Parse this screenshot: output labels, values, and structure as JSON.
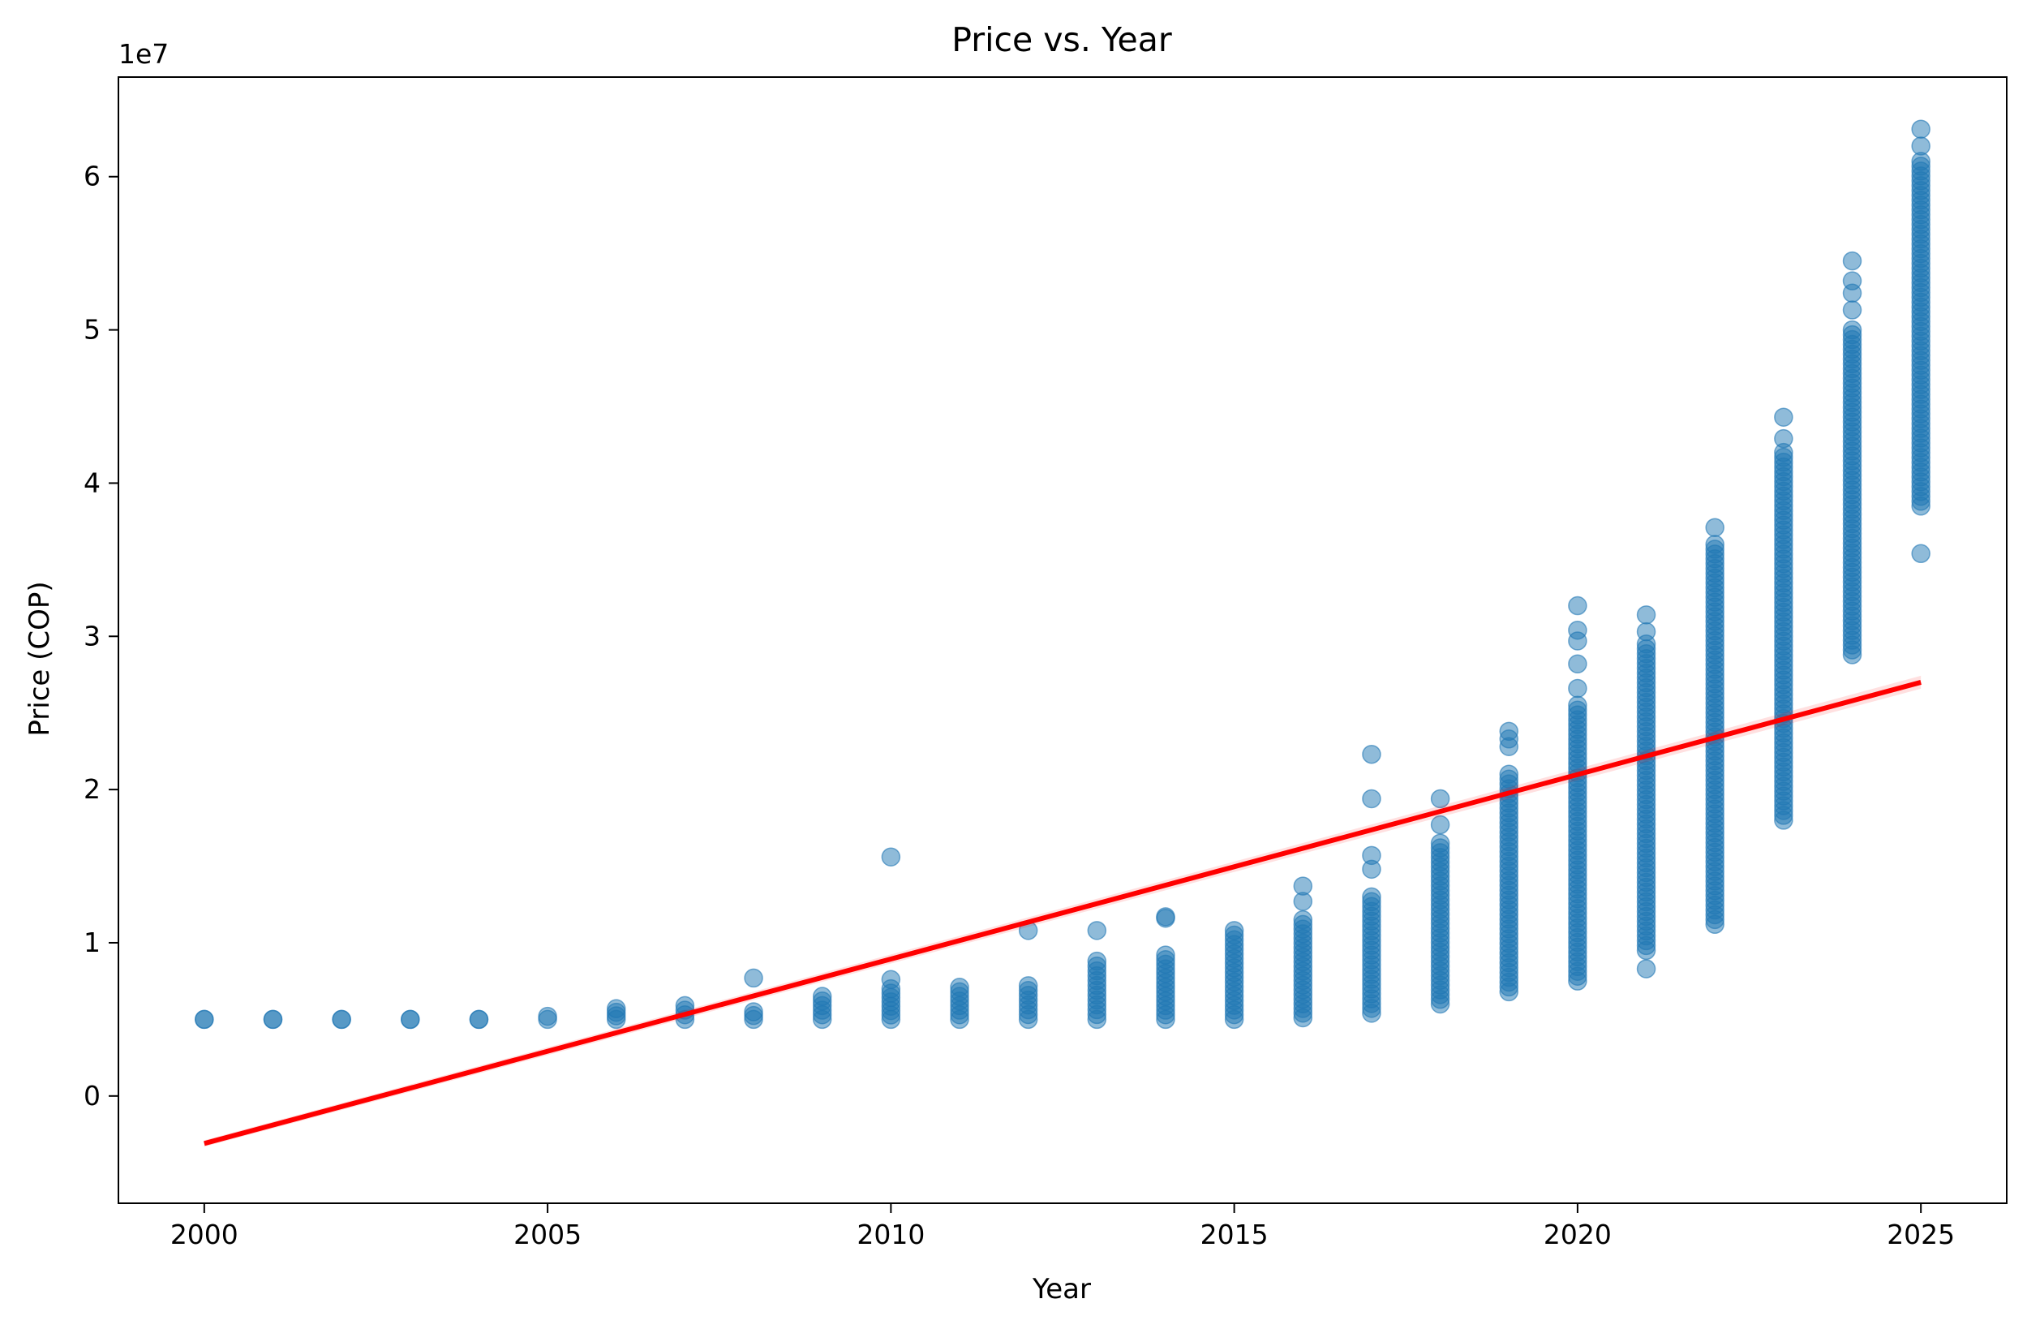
{
  "chart_data": {
    "type": "scatter",
    "title": "Price vs. Year",
    "xlabel": "Year",
    "ylabel": "Price (COP)",
    "y_offset_text": "1e7",
    "xlim": [
      1998.75,
      2026.25
    ],
    "ylim": [
      -7000000,
      66500000
    ],
    "x_ticks": [
      2000,
      2005,
      2010,
      2015,
      2020,
      2025
    ],
    "x_tick_labels": [
      "2000",
      "2005",
      "2010",
      "2015",
      "2020",
      "2025"
    ],
    "y_ticks": [
      0,
      10000000,
      20000000,
      30000000,
      40000000,
      50000000,
      60000000
    ],
    "y_tick_labels": [
      "0",
      "1",
      "2",
      "3",
      "4",
      "5",
      "6"
    ],
    "grid": false,
    "colors": {
      "points": "#1f77b4",
      "regression": "#ff0000"
    },
    "series": [
      {
        "kind": "scatter",
        "columns": [
          {
            "x": 2000,
            "min": 5000000,
            "max": 5000000,
            "outliers": []
          },
          {
            "x": 2001,
            "min": 5000000,
            "max": 5000000,
            "outliers": []
          },
          {
            "x": 2002,
            "min": 5000000,
            "max": 5000000,
            "outliers": []
          },
          {
            "x": 2003,
            "min": 5000000,
            "max": 5000000,
            "outliers": []
          },
          {
            "x": 2004,
            "min": 5000000,
            "max": 5000000,
            "outliers": []
          },
          {
            "x": 2005,
            "min": 5000000,
            "max": 5200000,
            "outliers": []
          },
          {
            "x": 2006,
            "min": 5000000,
            "max": 5700000,
            "outliers": []
          },
          {
            "x": 2007,
            "min": 5000000,
            "max": 5900000,
            "outliers": []
          },
          {
            "x": 2008,
            "min": 5000000,
            "max": 5500000,
            "outliers": [
              7700000
            ]
          },
          {
            "x": 2009,
            "min": 5000000,
            "max": 6500000,
            "outliers": []
          },
          {
            "x": 2010,
            "min": 5000000,
            "max": 7000000,
            "outliers": [
              7600000,
              15600000
            ]
          },
          {
            "x": 2011,
            "min": 5000000,
            "max": 7100000,
            "outliers": []
          },
          {
            "x": 2012,
            "min": 5000000,
            "max": 7200000,
            "outliers": [
              10800000
            ]
          },
          {
            "x": 2013,
            "min": 5000000,
            "max": 8800000,
            "outliers": [
              10800000
            ]
          },
          {
            "x": 2014,
            "min": 5000000,
            "max": 9200000,
            "outliers": [
              11600000,
              11700000
            ]
          },
          {
            "x": 2015,
            "min": 5000000,
            "max": 10500000,
            "outliers": [
              10800000
            ]
          },
          {
            "x": 2016,
            "min": 5100000,
            "max": 11500000,
            "outliers": [
              12700000,
              13700000
            ]
          },
          {
            "x": 2017,
            "min": 5400000,
            "max": 13000000,
            "outliers": [
              14800000,
              15700000,
              19400000,
              22300000
            ]
          },
          {
            "x": 2018,
            "min": 6000000,
            "max": 16500000,
            "outliers": [
              17700000,
              19400000
            ]
          },
          {
            "x": 2019,
            "min": 6800000,
            "max": 21000000,
            "outliers": [
              22800000,
              23300000,
              23800000
            ]
          },
          {
            "x": 2020,
            "min": 7500000,
            "max": 25500000,
            "outliers": [
              26600000,
              28200000,
              29700000,
              30400000,
              32000000
            ]
          },
          {
            "x": 2021,
            "min": 9500000,
            "max": 29500000,
            "outliers": [
              8300000,
              30300000,
              31400000
            ]
          },
          {
            "x": 2022,
            "min": 11200000,
            "max": 36000000,
            "outliers": [
              37100000
            ]
          },
          {
            "x": 2023,
            "min": 18000000,
            "max": 42000000,
            "outliers": [
              42900000,
              44300000
            ]
          },
          {
            "x": 2024,
            "min": 28800000,
            "max": 50000000,
            "outliers": [
              51300000,
              52400000,
              53200000,
              54500000
            ]
          },
          {
            "x": 2025,
            "min": 38500000,
            "max": 61000000,
            "outliers": [
              35400000,
              62000000,
              63100000
            ]
          }
        ]
      },
      {
        "kind": "regression",
        "x": [
          2000,
          2025
        ],
        "y": [
          -3100000,
          27000000
        ]
      }
    ]
  }
}
